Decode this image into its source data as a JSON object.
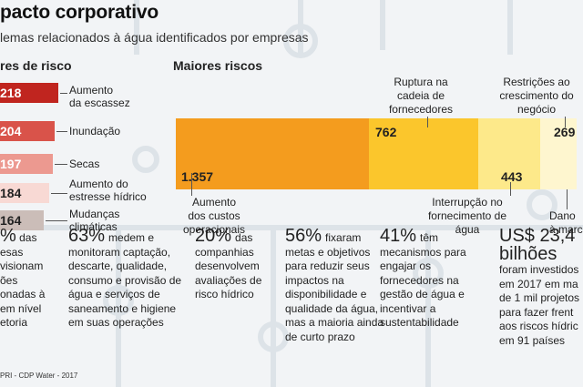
{
  "header": {
    "title": "pacto corporativo",
    "subtitle": "lemas relacionados à água identificados por empresas"
  },
  "sections": {
    "risk_factors_heading": "res de risco",
    "main_risks_heading": "Maiores riscos"
  },
  "colors": {
    "factor_1": "#c0251f",
    "factor_2": "#d9534a",
    "factor_3": "#ec9990",
    "factor_4": "#f8d9d4",
    "factor_5": "#cbbdb8",
    "risk_orange": "#f49c1e",
    "risk_yellow": "#fbc62c",
    "risk_light_yellow": "#fde98a",
    "risk_pale": "#fef6cf",
    "puzzle": "#dfe5ea"
  },
  "risk_factors": [
    {
      "value": "218",
      "label": [
        "Aumento",
        "da escassez"
      ]
    },
    {
      "value": "204",
      "label": [
        "Inundação"
      ]
    },
    {
      "value": "197",
      "label": [
        "Secas"
      ]
    },
    {
      "value": "184",
      "label": [
        "Aumento do",
        "estresse hídrico"
      ]
    },
    {
      "value": "164",
      "label": [
        "Mudanças",
        "climáticas"
      ]
    }
  ],
  "main_risks": [
    {
      "value": "1.357",
      "label": [
        "Aumento",
        "dos custos",
        "operacionais"
      ]
    },
    {
      "value": "762",
      "label": [
        "Ruptura na",
        "cadeia de",
        "fornecedores"
      ]
    },
    {
      "value": "443",
      "label": [
        "Interrupção no",
        "fornecimento de",
        "água"
      ]
    },
    {
      "value": "269",
      "label": [
        "Restrições ao",
        "crescimento do",
        "negócio"
      ]
    },
    {
      "value": "",
      "label": [
        "Dano",
        "à marc"
      ]
    }
  ],
  "chart_data": [
    {
      "type": "bar",
      "title": "res de risco",
      "categories": [
        "Aumento da escassez",
        "Inundação",
        "Secas",
        "Aumento do estresse hídrico",
        "Mudanças climáticas"
      ],
      "values": [
        218,
        204,
        197,
        184,
        164
      ]
    },
    {
      "type": "bar",
      "title": "Maiores riscos",
      "categories": [
        "Aumento dos custos operacionais",
        "Ruptura na cadeia de fornecedores",
        "Interrupção no fornecimento de água",
        "Restrições ao crescimento do negócio"
      ],
      "values": [
        1357,
        762,
        443,
        269
      ]
    }
  ],
  "stats": [
    {
      "highlight": "%",
      "lines": [
        "%  das",
        "esas",
        "visionam",
        "ões",
        "onadas à",
        "em nível",
        "etoria"
      ]
    },
    {
      "highlight": "63%",
      "lines": [
        "medem e",
        "monitoram captação,",
        "descarte, qualidade,",
        "consumo e provisão de",
        "água e serviços de",
        "saneamento e higiene",
        "em suas operações"
      ]
    },
    {
      "highlight": "20%",
      "lines": [
        "das",
        "companhias",
        "desenvolvem",
        "avaliações de",
        "risco hídrico"
      ]
    },
    {
      "highlight": "56%",
      "lines": [
        "fixaram",
        "metas e objetivos",
        "para reduzir seus",
        "impactos na",
        "disponibilidade e",
        "qualidade da água,",
        "mas a maioria ainda",
        "de curto prazo"
      ]
    },
    {
      "highlight": "41%",
      "lines": [
        "têm",
        "mecanismos para",
        "engajar os",
        "fornecedores na",
        "gestão de água e",
        "incentivar a",
        "sustentabilidade"
      ]
    },
    {
      "highlight": "US$ 23,4",
      "highlight2": "bilhões",
      "lines": [
        "foram investidos",
        "em 2017 em ma",
        "de 1 mil projetos",
        "para fazer frent",
        "aos riscos hídric",
        "em 91 países"
      ]
    }
  ],
  "source": "PRI - CDP Water - 2017"
}
